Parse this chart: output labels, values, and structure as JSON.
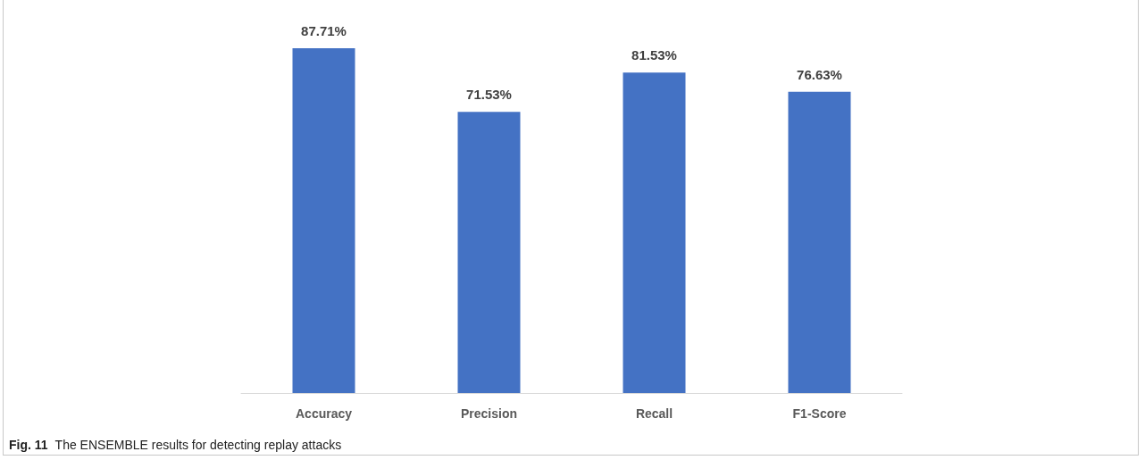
{
  "chart_data": {
    "type": "bar",
    "categories": [
      "Accuracy",
      "Precision",
      "Recall",
      "F1-Score"
    ],
    "values": [
      87.71,
      71.53,
      81.53,
      76.63
    ],
    "value_labels": [
      "87.71%",
      "71.53%",
      "81.53%",
      "76.63%"
    ],
    "color": "#4472c4",
    "annotations": [
      "Fig. 11",
      "The ENSEMBLE results for detecting replay attacks"
    ]
  }
}
